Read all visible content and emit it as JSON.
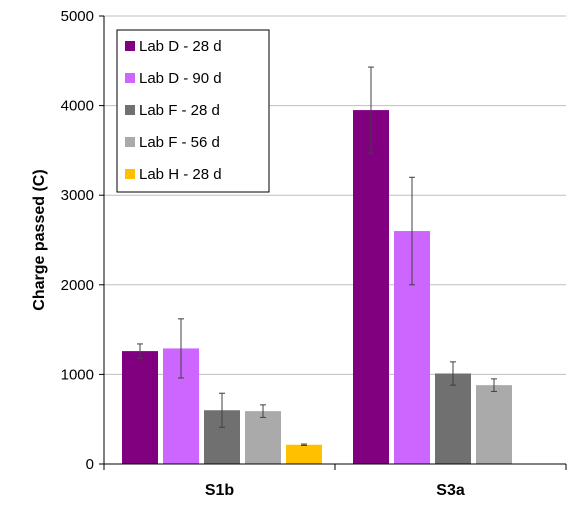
{
  "chart_data": {
    "type": "bar",
    "title": "",
    "xlabel": "",
    "ylabel": "Charge passed (C)",
    "ylim": [
      0,
      5000
    ],
    "yticks": [
      0,
      1000,
      2000,
      3000,
      4000,
      5000
    ],
    "grid": true,
    "legend_position": "top-left",
    "categories": [
      "S1b",
      "S3a"
    ],
    "series": [
      {
        "name": "Lab D - 28 d",
        "color": "#800080",
        "values": [
          1260,
          3950
        ],
        "errors": [
          80,
          480
        ]
      },
      {
        "name": "Lab D - 90 d",
        "color": "#CC66FF",
        "values": [
          1290,
          2600
        ],
        "errors": [
          330,
          600
        ]
      },
      {
        "name": "Lab F - 28 d",
        "color": "#707070",
        "values": [
          600,
          1010
        ],
        "errors": [
          190,
          130
        ]
      },
      {
        "name": "Lab F - 56 d",
        "color": "#AAAAAA",
        "values": [
          590,
          880
        ],
        "errors": [
          70,
          70
        ]
      },
      {
        "name": "Lab H - 28 d",
        "color": "#FFC000",
        "values": [
          215,
          null
        ],
        "errors": [
          8,
          null
        ]
      }
    ]
  }
}
